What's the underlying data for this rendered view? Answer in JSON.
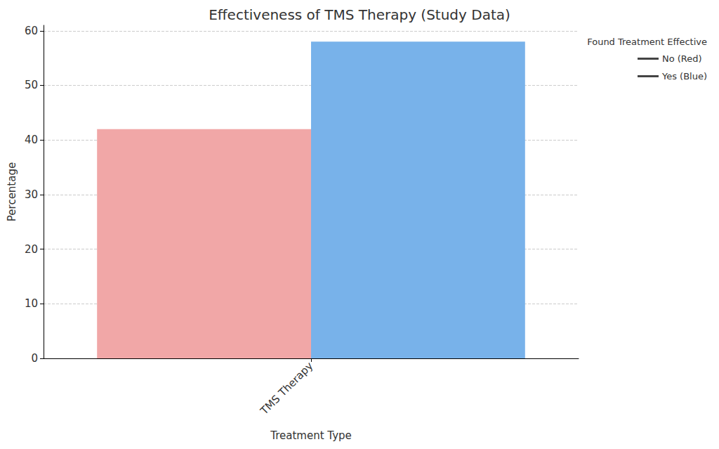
{
  "chart_data": {
    "type": "bar",
    "title": "Effectiveness of TMS Therapy (Study Data)",
    "x_label": "Treatment Type",
    "y_label": "Percentage",
    "categories": [
      "TMS Therapy"
    ],
    "series": [
      {
        "name": "No (Red)",
        "color": "#f1a7a7",
        "values": [
          42
        ]
      },
      {
        "name": "Yes (Blue)",
        "color": "#78b2ea",
        "values": [
          58
        ]
      }
    ],
    "ylim": [
      0,
      61
    ],
    "yticks": [
      0,
      10,
      20,
      30,
      40,
      50,
      60
    ],
    "grid": true,
    "legend": "upper right",
    "legend_title": "Found Treatment Effective"
  }
}
